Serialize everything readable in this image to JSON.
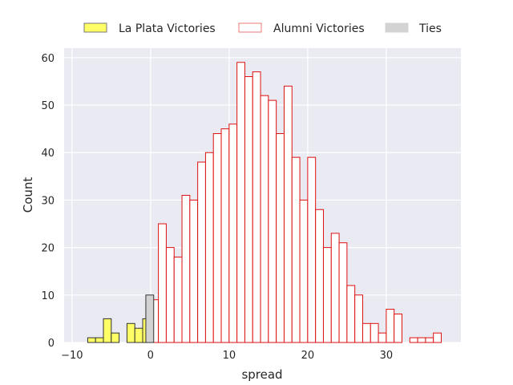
{
  "chart_data": {
    "type": "bar",
    "xlabel": "spread",
    "ylabel": "Count",
    "xlim": [
      -11,
      39.5
    ],
    "ylim": [
      0,
      62
    ],
    "xticks": [
      -10,
      0,
      10,
      20,
      30
    ],
    "yticks": [
      0,
      10,
      20,
      30,
      40,
      50,
      60
    ],
    "grid": true,
    "legend_position": "top-center",
    "bin_width": 1,
    "series": [
      {
        "name": "La Plata Victories",
        "fill": "#ffff66",
        "edge": "#333333",
        "bins": [
          {
            "x": -8,
            "count": 1
          },
          {
            "x": -7,
            "count": 1
          },
          {
            "x": -6,
            "count": 5
          },
          {
            "x": -5,
            "count": 2
          },
          {
            "x": -3,
            "count": 4
          },
          {
            "x": -2,
            "count": 3
          },
          {
            "x": -1,
            "count": 5
          }
        ]
      },
      {
        "name": "Alumni Victories",
        "fill": "#ffffff",
        "edge": "#dd1111",
        "bins": [
          {
            "x": 0,
            "count": 9
          },
          {
            "x": 1,
            "count": 25
          },
          {
            "x": 2,
            "count": 20
          },
          {
            "x": 3,
            "count": 18
          },
          {
            "x": 4,
            "count": 31
          },
          {
            "x": 5,
            "count": 30
          },
          {
            "x": 6,
            "count": 38
          },
          {
            "x": 7,
            "count": 40
          },
          {
            "x": 8,
            "count": 44
          },
          {
            "x": 9,
            "count": 45
          },
          {
            "x": 10,
            "count": 46
          },
          {
            "x": 11,
            "count": 59
          },
          {
            "x": 12,
            "count": 56
          },
          {
            "x": 13,
            "count": 57
          },
          {
            "x": 14,
            "count": 52
          },
          {
            "x": 15,
            "count": 51
          },
          {
            "x": 16,
            "count": 44
          },
          {
            "x": 17,
            "count": 54
          },
          {
            "x": 18,
            "count": 39
          },
          {
            "x": 19,
            "count": 30
          },
          {
            "x": 20,
            "count": 39
          },
          {
            "x": 21,
            "count": 28
          },
          {
            "x": 22,
            "count": 20
          },
          {
            "x": 23,
            "count": 23
          },
          {
            "x": 24,
            "count": 21
          },
          {
            "x": 25,
            "count": 12
          },
          {
            "x": 26,
            "count": 10
          },
          {
            "x": 27,
            "count": 4
          },
          {
            "x": 28,
            "count": 4
          },
          {
            "x": 29,
            "count": 2
          },
          {
            "x": 30,
            "count": 7
          },
          {
            "x": 31,
            "count": 6
          },
          {
            "x": 33,
            "count": 1
          },
          {
            "x": 34,
            "count": 1
          },
          {
            "x": 35,
            "count": 1
          },
          {
            "x": 36,
            "count": 2
          }
        ]
      },
      {
        "name": "Ties",
        "fill": "#d3d3d3",
        "edge": "#333333",
        "bins": [
          {
            "x": -0.6,
            "count": 10
          }
        ]
      }
    ]
  }
}
